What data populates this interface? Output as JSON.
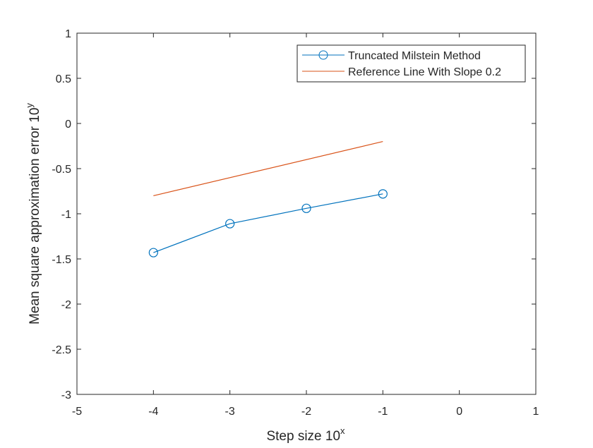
{
  "chart_data": {
    "type": "line",
    "title": "",
    "xlabel": "Step size 10",
    "xlabel_superscript": "x",
    "ylabel": "Mean square approximation error 10",
    "ylabel_superscript": "y",
    "xlim": [
      -5,
      1
    ],
    "ylim": [
      -3,
      1
    ],
    "xticks": [
      -5,
      -4,
      -3,
      -2,
      -1,
      0,
      1
    ],
    "yticks": [
      -3,
      -2.5,
      -2,
      -1.5,
      -1,
      -0.5,
      0,
      0.5,
      1
    ],
    "xtick_labels": [
      "-5",
      "-4",
      "-3",
      "-2",
      "-1",
      "0",
      "1"
    ],
    "ytick_labels": [
      "-3",
      "-2.5",
      "-2",
      "-1.5",
      "-1",
      "-0.5",
      "0",
      "0.5",
      "1"
    ],
    "grid": false,
    "legend_position": "top-right",
    "series": [
      {
        "name": "Truncated Milstein Method",
        "color": "#0072BD",
        "marker": "circle",
        "x": [
          -4,
          -3,
          -2,
          -1
        ],
        "y": [
          -1.43,
          -1.11,
          -0.94,
          -0.78
        ]
      },
      {
        "name": "Reference Line With Slope 0.2",
        "color": "#D95319",
        "marker": "none",
        "x": [
          -4,
          -1
        ],
        "y": [
          -0.8,
          -0.2
        ]
      }
    ]
  }
}
